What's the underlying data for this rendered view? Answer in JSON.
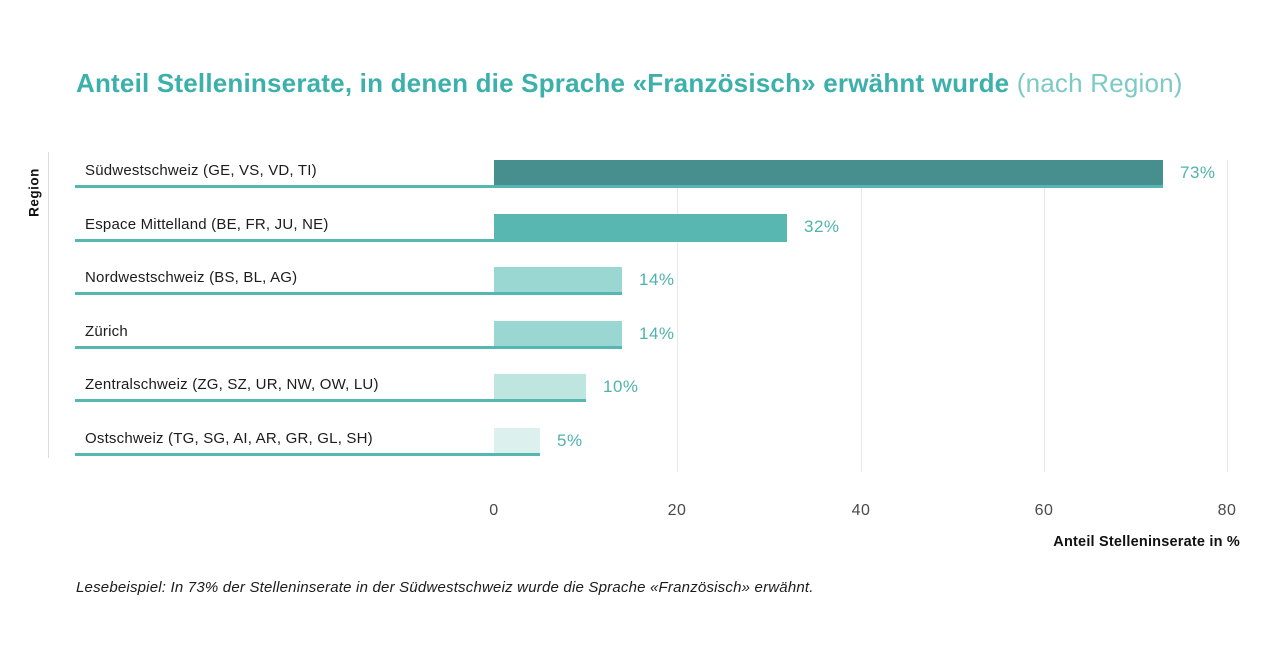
{
  "title": {
    "main": "Anteil Stelleninserate, in denen die Sprache «Französisch» erwähnt wurde",
    "suffix": " (nach Region)"
  },
  "chart_data": {
    "type": "bar",
    "orientation": "horizontal",
    "title": "Anteil Stelleninserate, in denen die Sprache «Französisch» erwähnt wurde (nach Region)",
    "ylabel": "Region",
    "xlabel": "Anteil Stelleninserate in %",
    "categories": [
      "Südwestschweiz (GE, VS, VD, TI)",
      "Espace Mittelland (BE, FR, JU, NE)",
      "Nordwestschweiz (BS, BL, AG)",
      "Zürich",
      "Zentralschweiz (ZG, SZ, UR, NW, OW, LU)",
      "Ostschweiz (TG, SG, AI, AR, GR, GL, SH)"
    ],
    "values": [
      73,
      32,
      14,
      14,
      10,
      5
    ],
    "value_labels": [
      "73%",
      "32%",
      "14%",
      "14%",
      "10%",
      "5%"
    ],
    "xlim": [
      0,
      80
    ],
    "xticks": [
      0,
      20,
      40,
      60,
      80
    ],
    "grid": "vertical-gridlines-at-ticks",
    "legend": "none",
    "bar_colors": [
      "#478f8e",
      "#59b7b1",
      "#9bd7d2",
      "#9bd7d2",
      "#bfe5e1",
      "#dcf0ee"
    ],
    "underline_color": "#56b6b1",
    "value_label_color": "#4fb3ae",
    "gridline_color": "#e9e9e9"
  },
  "footnote": "Lesebeispiel: In 73% der Stelleninserate in der Südwestschweiz wurde die Sprache «Französisch» erwähnt."
}
